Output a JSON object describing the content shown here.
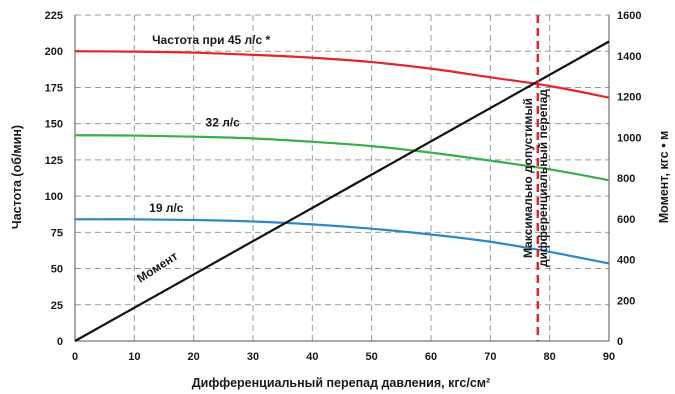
{
  "chart_data": {
    "type": "line",
    "xlabel": "Дифференциальный перепад давления, кгс/см²",
    "ylabel_left": "Частота (об/мин)",
    "ylabel_right": "Момент, кгс • м",
    "xlim": [
      0,
      90
    ],
    "ylim_left": [
      0,
      225
    ],
    "ylim_right": [
      0,
      1600
    ],
    "x_ticks": [
      0,
      10,
      20,
      30,
      40,
      50,
      60,
      70,
      80,
      90
    ],
    "y_ticks_left": [
      0,
      25,
      50,
      75,
      100,
      125,
      150,
      175,
      200,
      225
    ],
    "y_ticks_right": [
      0,
      200,
      400,
      600,
      800,
      1000,
      1200,
      1400,
      1600
    ],
    "grid": true,
    "series": [
      {
        "name": "Частота при 45 л/с *",
        "axis": "left",
        "color": "#e3262b",
        "x": [
          0,
          10,
          20,
          30,
          40,
          50,
          60,
          70,
          80,
          90
        ],
        "y": [
          200,
          199.7,
          199,
          197.5,
          195.5,
          192.5,
          188,
          182,
          176,
          168
        ]
      },
      {
        "name": "32 л/с",
        "axis": "left",
        "color": "#3aad4e",
        "x": [
          0,
          10,
          20,
          30,
          40,
          50,
          60,
          70,
          80,
          90
        ],
        "y": [
          142,
          141.8,
          141,
          139.8,
          137.5,
          134.5,
          130,
          124.5,
          118.5,
          111
        ]
      },
      {
        "name": "19 л/с",
        "axis": "left",
        "color": "#2f87c8",
        "x": [
          0,
          10,
          20,
          30,
          40,
          50,
          60,
          70,
          80,
          90
        ],
        "y": [
          84,
          84,
          83.5,
          82.5,
          80.5,
          77.5,
          73.5,
          68.5,
          61.5,
          53.5
        ]
      },
      {
        "name": "Момент",
        "axis": "right",
        "color": "#111111",
        "x": [
          0,
          90
        ],
        "y": [
          0,
          1470
        ]
      }
    ],
    "annotations": [
      {
        "text": "Частота при 45 л/с *",
        "x": 13,
        "y": 205
      },
      {
        "text": "32 л/с",
        "x": 22,
        "y": 148
      },
      {
        "text": "19 л/с",
        "x": 12.5,
        "y": 89
      },
      {
        "text": "Момент",
        "x": 11,
        "y": 40,
        "rotate": -33
      }
    ],
    "limit_line": {
      "x": 78,
      "color": "#e3262b",
      "label_line1": "Максимально допустимый",
      "label_line2": "дифференциальный перепад"
    }
  }
}
